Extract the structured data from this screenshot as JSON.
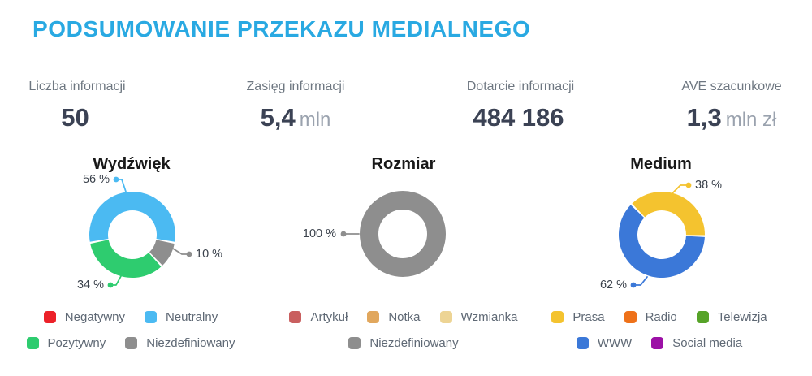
{
  "header": {
    "title": "PODSUMOWANIE PRZEKAZU MEDIALNEGO"
  },
  "colors": {
    "title_accent": "#29a9e2",
    "stat_value": "#3b4254",
    "stat_unit": "#9aa2ae",
    "stat_label": "#6e7781",
    "legend_text": "#5f6975"
  },
  "stats": [
    {
      "label": "Liczba informacji",
      "value": "50",
      "unit": ""
    },
    {
      "label": "Zasięg informacji",
      "value": "5,4",
      "unit": "mln"
    },
    {
      "label": "Dotarcie informacji",
      "value": "484 186",
      "unit": ""
    },
    {
      "label": "AVE szacunkowe",
      "value": "1,3",
      "unit": "mln zł"
    }
  ],
  "chart_data": [
    {
      "type": "pie",
      "donut": true,
      "title": "Wydźwięk",
      "start_angle_deg": -100.8,
      "segments": [
        {
          "label": "Neutralny",
          "pct": 56,
          "display": "56 %",
          "color": "#4bbaf2"
        },
        {
          "label": "Niezdefiniowany",
          "pct": 10,
          "display": "10 %",
          "color": "#8e8e8e"
        },
        {
          "label": "Pozytywny",
          "pct": 34,
          "display": "34 %",
          "color": "#2ecc6f"
        }
      ],
      "legend_rows": [
        [
          {
            "label": "Negatywny",
            "color": "#ec2129"
          },
          {
            "label": "Neutralny",
            "color": "#4bbaf2"
          }
        ],
        [
          {
            "label": "Pozytywny",
            "color": "#2ecc6f"
          },
          {
            "label": "Niezdefiniowany",
            "color": "#8e8e8e"
          }
        ]
      ]
    },
    {
      "type": "pie",
      "donut": true,
      "title": "Rozmiar",
      "start_angle_deg": -90,
      "segments": [
        {
          "label": "Niezdefiniowany",
          "pct": 100,
          "display": "100 %",
          "color": "#8e8e8e"
        }
      ],
      "legend_rows": [
        [
          {
            "label": "Artykuł",
            "color": "#c95f5f"
          },
          {
            "label": "Notka",
            "color": "#e1a75d"
          },
          {
            "label": "Wzmianka",
            "color": "#edd494"
          }
        ],
        [
          {
            "label": "Niezdefiniowany",
            "color": "#8e8e8e"
          }
        ]
      ]
    },
    {
      "type": "pie",
      "donut": true,
      "title": "Medium",
      "start_angle_deg": -45,
      "segments": [
        {
          "label": "Prasa",
          "pct": 38,
          "display": "38 %",
          "color": "#f4c32f"
        },
        {
          "label": "WWW",
          "pct": 62,
          "display": "62 %",
          "color": "#3b78d8"
        }
      ],
      "legend_rows": [
        [
          {
            "label": "Prasa",
            "color": "#f4c32f"
          },
          {
            "label": "Radio",
            "color": "#ee7119"
          },
          {
            "label": "Telewizja",
            "color": "#56a328"
          }
        ],
        [
          {
            "label": "WWW",
            "color": "#3b78d8"
          },
          {
            "label": "Social media",
            "color": "#9c10a6"
          }
        ]
      ]
    }
  ]
}
